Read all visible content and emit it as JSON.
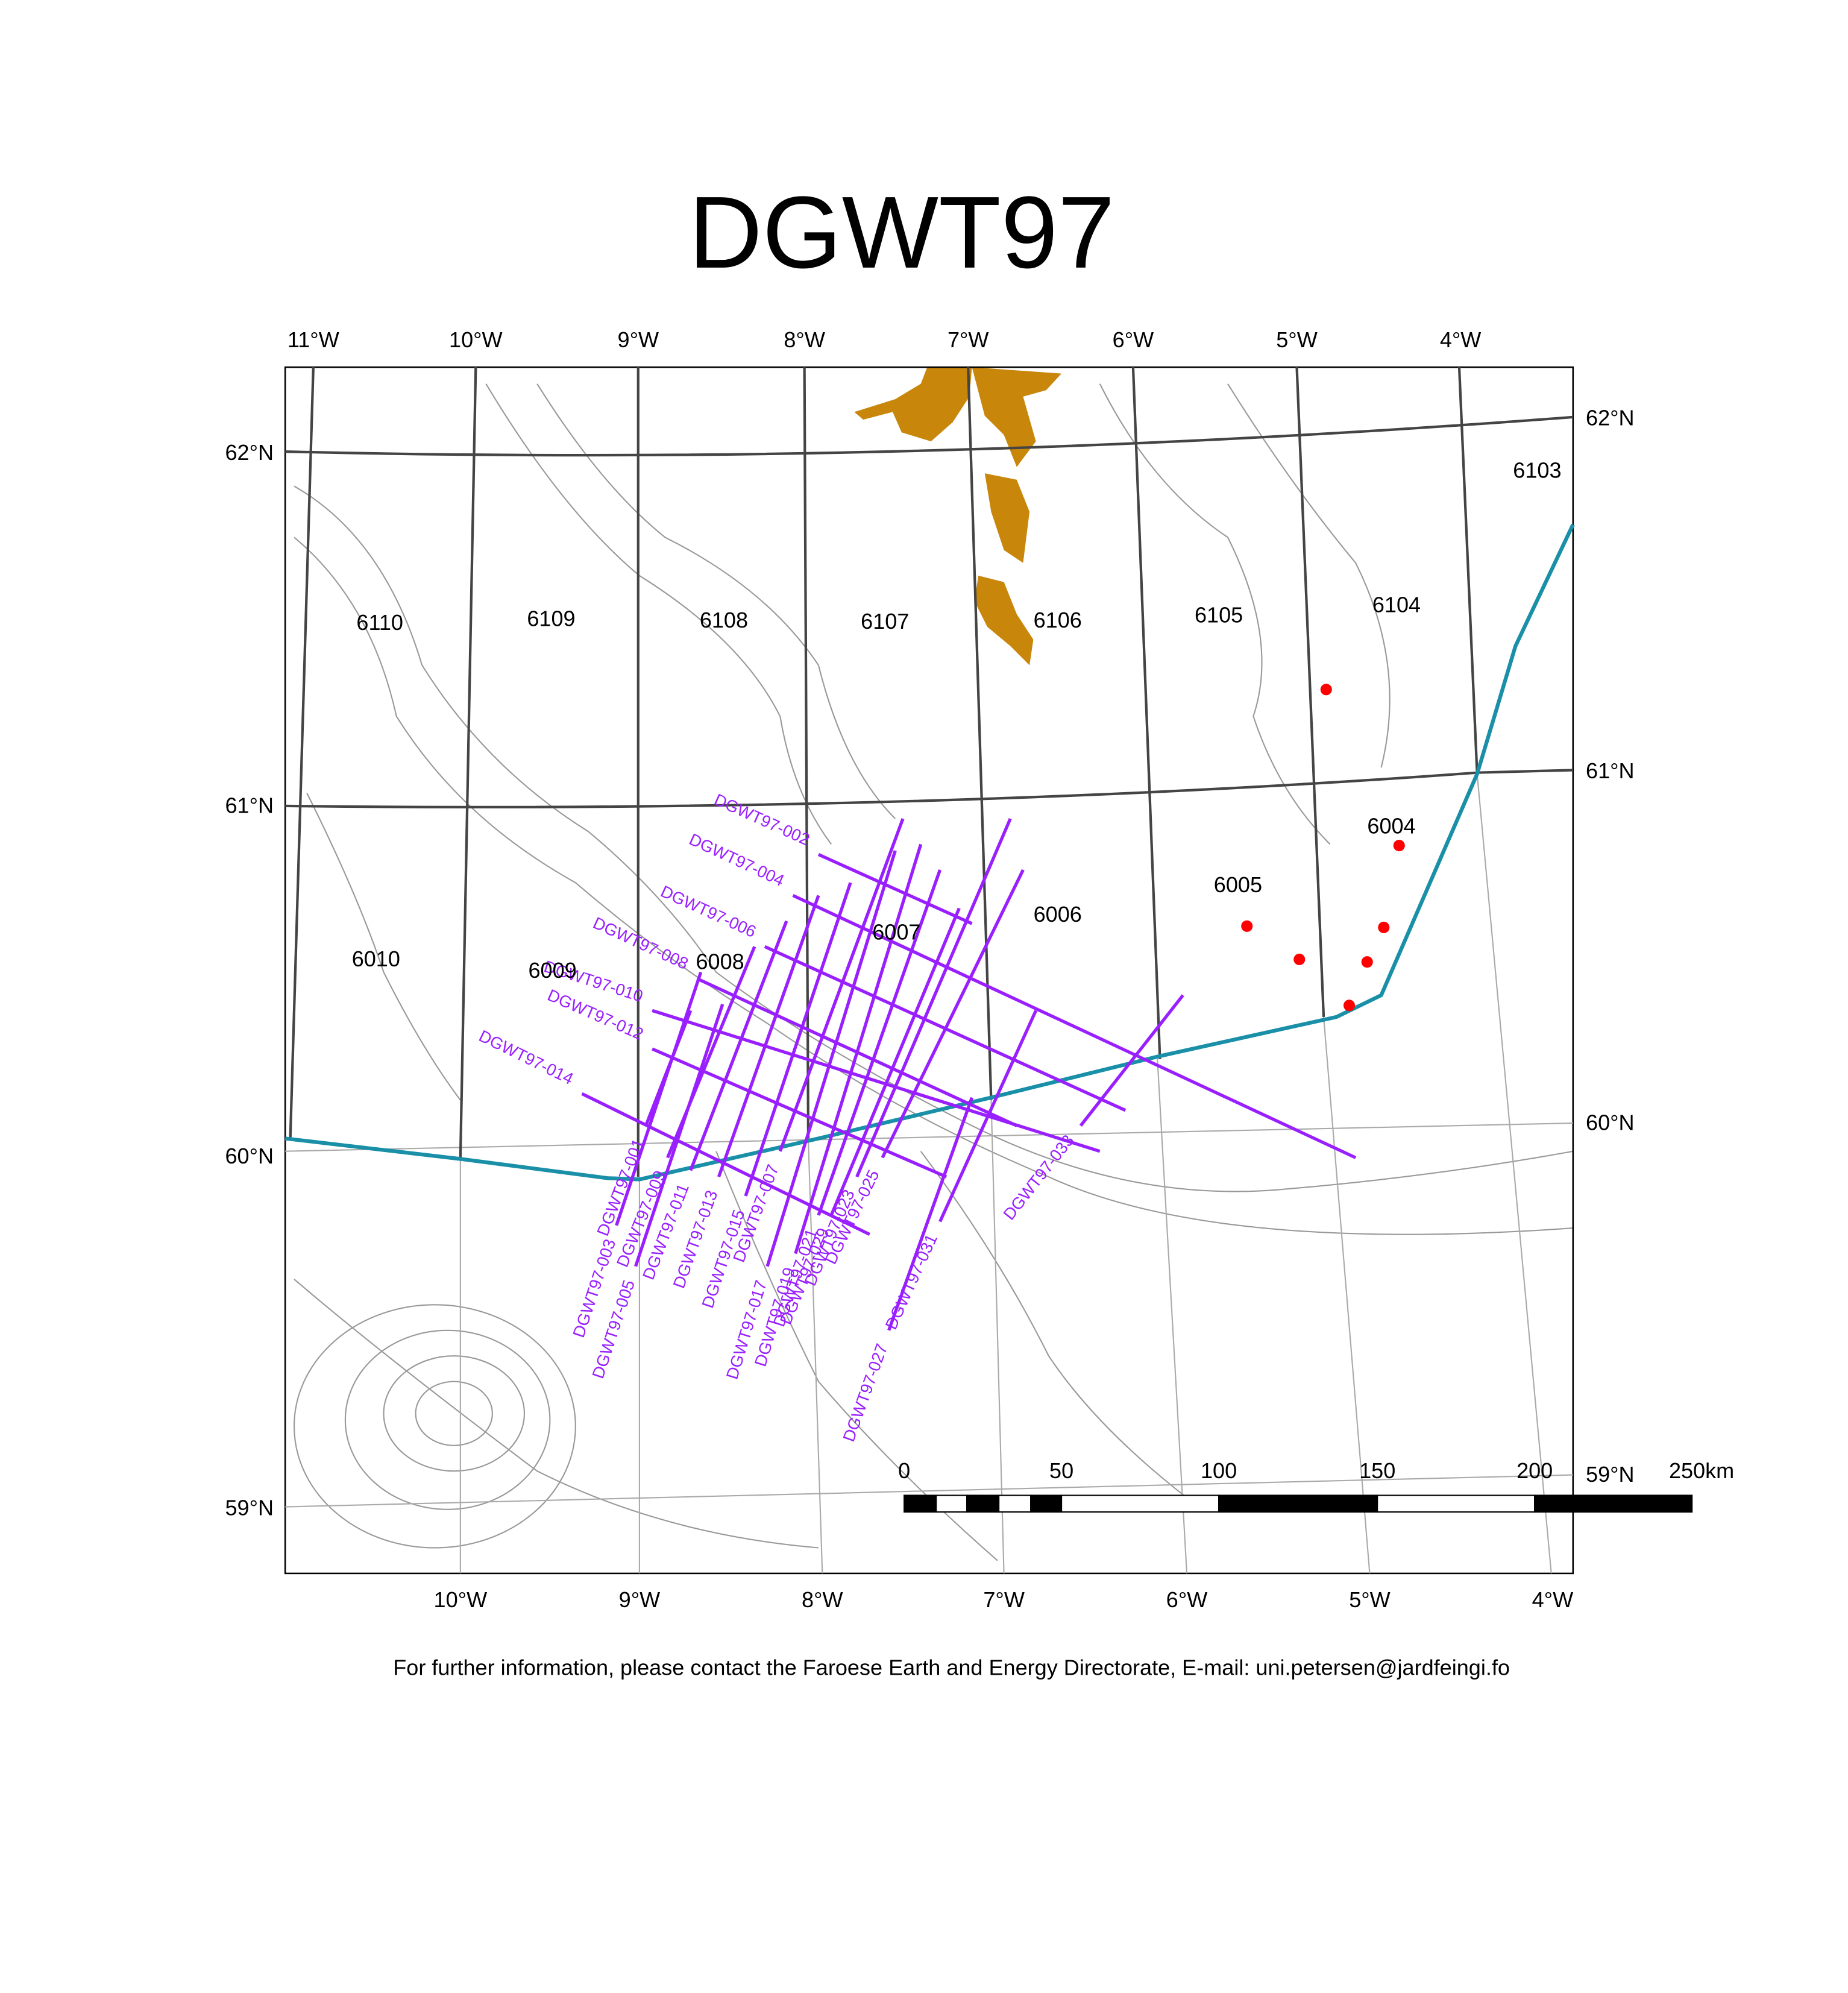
{
  "title": "DGWT97",
  "axes": {
    "top": [
      "11°W",
      "10°W",
      "9°W",
      "8°W",
      "7°W",
      "6°W",
      "5°W",
      "4°W"
    ],
    "bottom": [
      "10°W",
      "9°W",
      "8°W",
      "7°W",
      "6°W",
      "5°W",
      "4°W"
    ],
    "left": [
      "62°N",
      "61°N",
      "60°N",
      "59°N"
    ],
    "right": [
      "62°N",
      "61°N",
      "60°N",
      "59°N"
    ]
  },
  "blocks": [
    "6110",
    "6109",
    "6108",
    "6107",
    "6106",
    "6105",
    "6104",
    "6103",
    "6010",
    "6009",
    "6008",
    "6007",
    "6006",
    "6005",
    "6004"
  ],
  "seismic_lines": [
    "DGWT97-001",
    "DGWT97-002",
    "DGWT97-003",
    "DGWT97-004",
    "DGWT97-005",
    "DGWT97-006",
    "DGWT97-007",
    "DGWT97-008",
    "DGWT97-009",
    "DGWT97-010",
    "DGWT97-011",
    "DGWT97-012",
    "DGWT97-013",
    "DGWT97-014",
    "DGWT97-015",
    "DGWT97-017",
    "DGWT97-019",
    "DGWT97-021",
    "DGWT97-023",
    "DGWT97-025",
    "DGWT97-027",
    "DGWT97-029",
    "DGWT97-031",
    "DGWT97-033"
  ],
  "scale_bar": {
    "labels": [
      "0",
      "50",
      "100",
      "150",
      "200",
      "250km"
    ]
  },
  "footer": "For further information, please contact the Faroese Earth and Energy Directorate, E-mail: uni.petersen@jardfeingi.fo"
}
